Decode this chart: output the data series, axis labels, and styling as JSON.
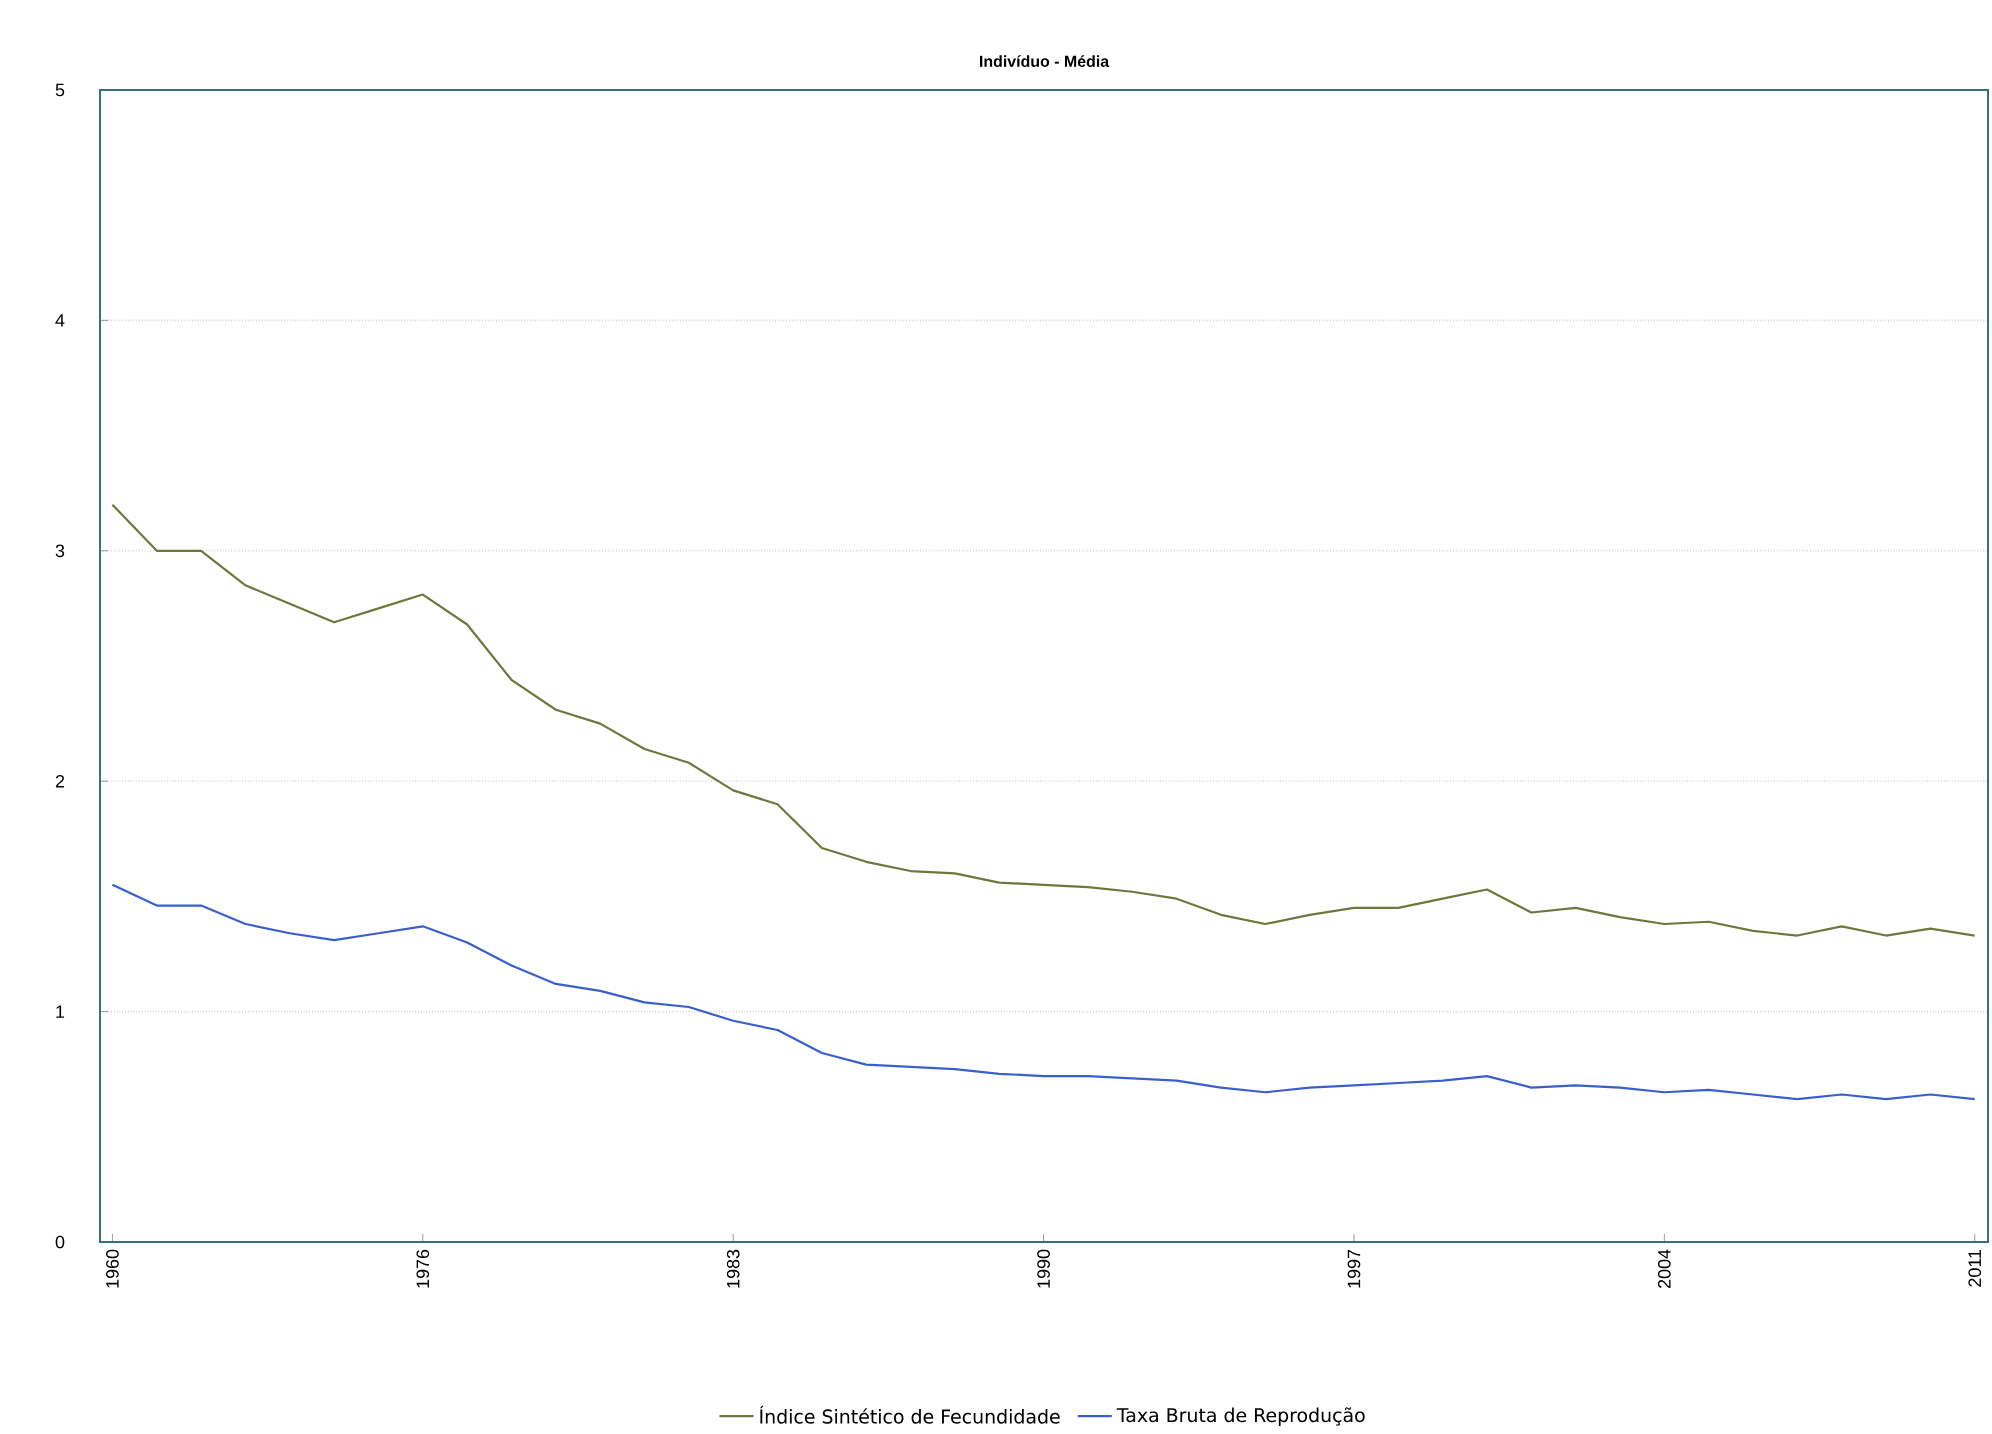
{
  "chart_data": {
    "type": "line",
    "title": "Indivíduo - Média",
    "categories": [
      "1960",
      null,
      null,
      null,
      null,
      null,
      null,
      "1976",
      null,
      null,
      null,
      null,
      null,
      null,
      "1983",
      null,
      null,
      null,
      null,
      null,
      null,
      "1990",
      null,
      null,
      null,
      null,
      null,
      null,
      "1997",
      null,
      null,
      null,
      null,
      null,
      null,
      "2004",
      null,
      null,
      null,
      null,
      null,
      null,
      "2011"
    ],
    "series": [
      {
        "name": "Índice Sintético de Fecundidade",
        "color": "#6b7a3c",
        "values": [
          3.2,
          3.0,
          3.0,
          2.85,
          2.77,
          2.69,
          2.75,
          2.81,
          2.68,
          2.44,
          2.31,
          2.25,
          2.14,
          2.08,
          1.96,
          1.9,
          1.71,
          1.65,
          1.61,
          1.6,
          1.56,
          1.55,
          1.54,
          1.52,
          1.49,
          1.42,
          1.38,
          1.42,
          1.45,
          1.45,
          1.49,
          1.53,
          1.43,
          1.45,
          1.41,
          1.38,
          1.39,
          1.35,
          1.33,
          1.37,
          1.33,
          1.36,
          1.33
        ]
      },
      {
        "name": "Taxa Bruta de Reprodução",
        "color": "#3a5fcd",
        "values": [
          1.55,
          1.46,
          1.46,
          1.38,
          1.34,
          1.31,
          1.34,
          1.37,
          1.3,
          1.2,
          1.12,
          1.09,
          1.04,
          1.02,
          0.96,
          0.92,
          0.82,
          0.77,
          0.76,
          0.75,
          0.73,
          0.72,
          0.72,
          0.71,
          0.7,
          0.67,
          0.65,
          0.67,
          0.68,
          0.69,
          0.7,
          0.72,
          0.67,
          0.68,
          0.67,
          0.65,
          0.66,
          0.64,
          0.62,
          0.64,
          0.62,
          0.64,
          0.62
        ]
      }
    ],
    "ylim": [
      0,
      5
    ],
    "yticks": [
      0,
      1,
      2,
      3,
      4,
      5
    ],
    "grid": "y",
    "legend": "bottom"
  }
}
